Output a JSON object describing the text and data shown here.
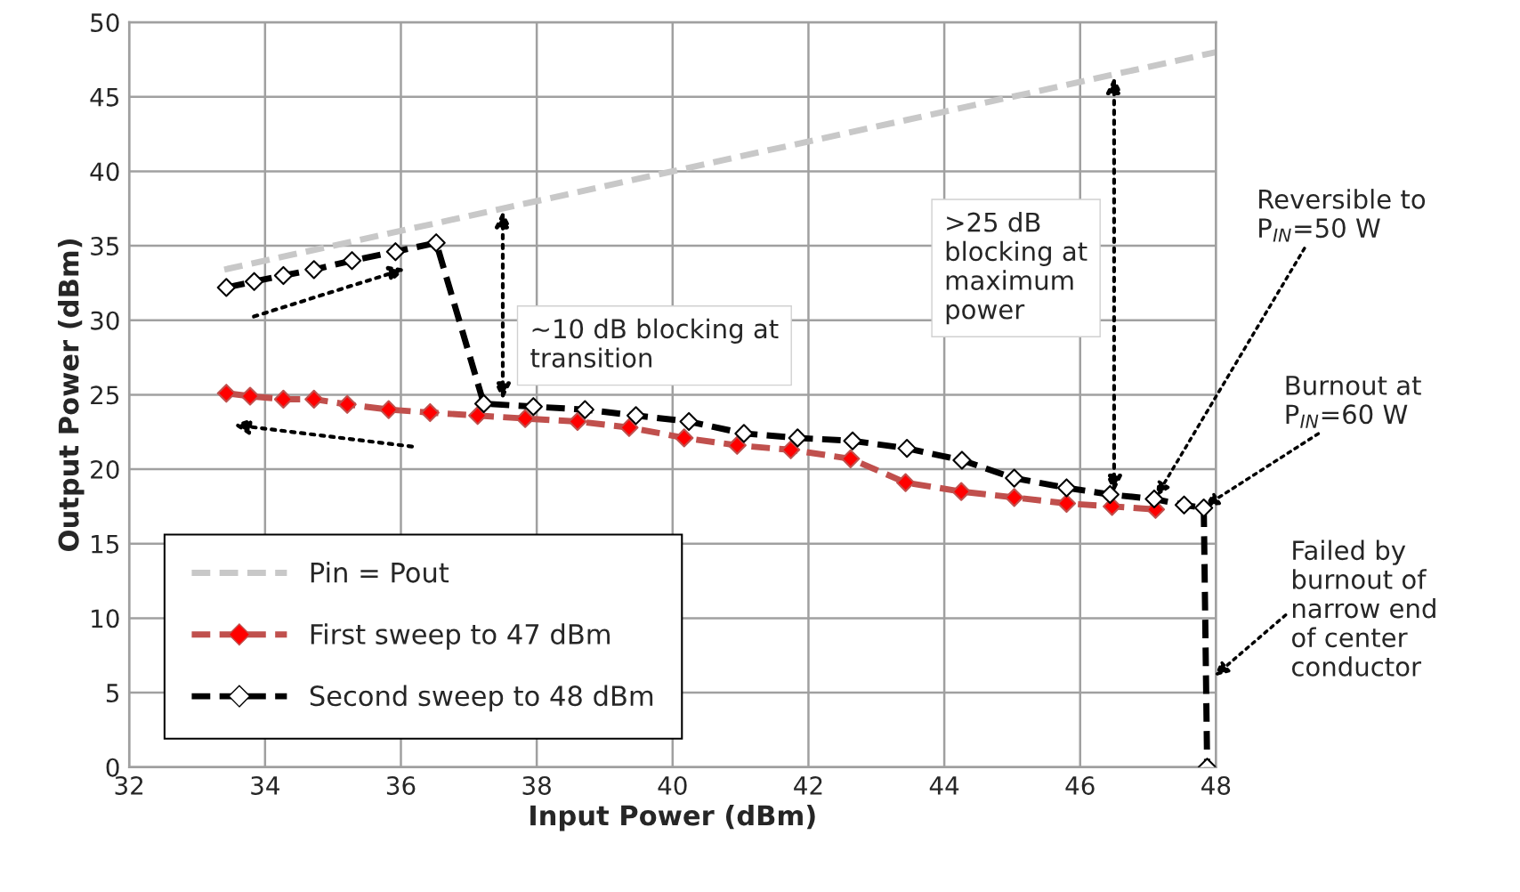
{
  "chart_data": {
    "type": "line",
    "xlabel": "Input Power (dBm)",
    "ylabel": "Output Power (dBm)",
    "xlim": [
      32,
      48
    ],
    "xticks": [
      32,
      34,
      36,
      38,
      40,
      42,
      44,
      46,
      48
    ],
    "ylim": [
      0,
      50
    ],
    "yticks": [
      0,
      5,
      10,
      15,
      20,
      25,
      30,
      35,
      40,
      45,
      50
    ],
    "grid": true,
    "legend": "bottom left",
    "line_style": "dashed",
    "series": [
      {
        "name": "Pin = Pout",
        "color": "#c8c8c8",
        "marker": "none",
        "x": [
          33.4,
          48
        ],
        "values": [
          33.4,
          48
        ]
      },
      {
        "name": "First sweep to 47 dBm",
        "color": "#c0504d",
        "marker": "diamond",
        "x": [
          33.43,
          33.78,
          34.27,
          34.72,
          35.21,
          35.82,
          36.43,
          37.13,
          37.83,
          38.6,
          39.36,
          40.17,
          40.95,
          41.74,
          42.62,
          43.43,
          44.25,
          45.03,
          45.8,
          46.47,
          47.11
        ],
        "values": [
          25.1,
          24.9,
          24.7,
          24.7,
          24.35,
          24.0,
          23.8,
          23.6,
          23.4,
          23.2,
          22.8,
          22.1,
          21.6,
          21.3,
          20.7,
          19.1,
          18.5,
          18.1,
          17.7,
          17.5,
          17.3
        ]
      },
      {
        "name": "Second sweep to 48 dBm",
        "color": "#000000",
        "marker": "diamond",
        "x": [
          33.43,
          33.84,
          34.27,
          34.72,
          35.28,
          35.92,
          36.52,
          37.22,
          37.95,
          38.71,
          39.46,
          40.24,
          41.05,
          41.84,
          42.65,
          43.45,
          44.26,
          45.03,
          45.8,
          46.44,
          47.09,
          47.53,
          47.82,
          47.87
        ],
        "values": [
          32.2,
          32.6,
          33.0,
          33.4,
          34.0,
          34.6,
          35.2,
          24.4,
          24.2,
          24.0,
          23.6,
          23.2,
          22.4,
          22.1,
          21.9,
          21.4,
          20.6,
          19.4,
          18.75,
          18.3,
          18.0,
          17.6,
          17.4,
          0
        ]
      }
    ],
    "annotations": [
      {
        "text": "~10 dB blocking at transition",
        "x": 37.5,
        "y": 24.5
      },
      ">25 dB blocking at maximum power",
      {
        "text": "Reversible to P$_{IN}$=50 W",
        "x": 47.1,
        "y": 18.0
      },
      {
        "text": "Burnout at P$_{IN}$=60 W",
        "x": 47.8,
        "y": 17.4
      },
      "Failed by burnout of narrow end of center conductor"
    ]
  }
}
